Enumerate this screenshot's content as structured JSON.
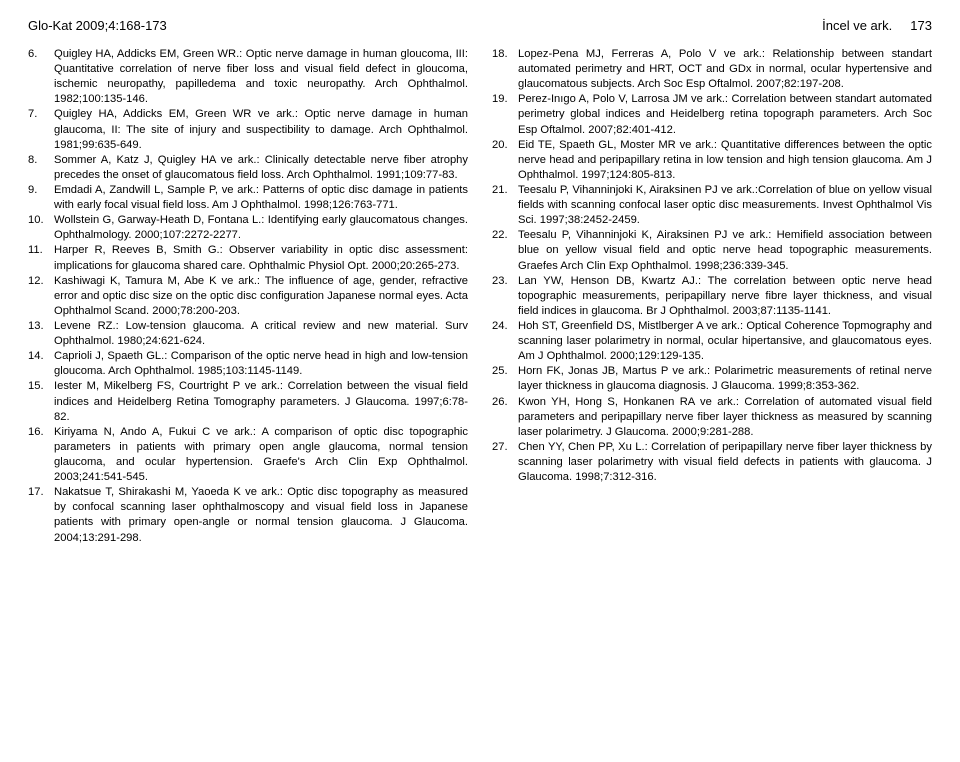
{
  "header": {
    "left": "Glo-Kat 2009;4:168-173",
    "right": "İncel ve ark.",
    "page": "173"
  },
  "leftRefs": [
    {
      "n": "6.",
      "t": "Quigley HA, Addicks EM, Green WR.: Optic nerve damage in human gloucoma, III: Quantitative correlation of nerve fiber loss and visual field defect in gloucoma, ischemic neuropathy, papilledema and toxic neuropathy. Arch Ophthalmol. 1982;100:135-146."
    },
    {
      "n": "7.",
      "t": "Quigley HA, Addicks EM, Green WR ve ark.: Optic nerve damage in human glaucoma, II: The site of injury and suspectibility to damage. Arch Ophthalmol. 1981;99:635-649."
    },
    {
      "n": "8.",
      "t": "Sommer A, Katz J, Quigley HA ve ark.: Clinically detectable nerve fiber atrophy precedes the onset of glaucomatous field loss. Arch Ophthalmol. 1991;109:77-83."
    },
    {
      "n": "9.",
      "t": "Emdadi A, Zandwill L, Sample P, ve ark.: Patterns of optic disc damage in patients with early focal visual field loss. Am J Ophthalmol. 1998;126:763-771."
    },
    {
      "n": "10.",
      "t": "Wollstein G, Garway-Heath D, Fontana L.: Identifying early glaucomatous changes. Ophthalmology. 2000;107:2272-2277."
    },
    {
      "n": "11.",
      "t": "Harper R, Reeves B, Smith G.: Observer variability in optic disc assessment: implications for glaucoma shared care. Ophthalmic Physiol Opt. 2000;20:265-273."
    },
    {
      "n": "12.",
      "t": "Kashiwagi K, Tamura M, Abe K ve ark.: The influence of age, gender, refractive error and optic disc size on the optic disc configuration Japanese normal eyes. Acta Ophthalmol Scand. 2000;78:200-203."
    },
    {
      "n": "13.",
      "t": "Levene RZ.: Low-tension glaucoma. A critical review and new material. Surv Ophthalmol. 1980;24:621-624."
    },
    {
      "n": "14.",
      "t": "Caprioli J, Spaeth GL.: Comparison of the optic nerve head in high and low-tension gloucoma. Arch Ophthalmol. 1985;103:1145-1149."
    },
    {
      "n": "15.",
      "t": "Iester M, Mikelberg FS, Courtright P ve ark.: Correlation between the visual field indices and Heidelberg Retina Tomography parameters. J Glaucoma. 1997;6:78-82."
    },
    {
      "n": "16.",
      "t": "Kiriyama N, Ando A, Fukui C ve ark.: A comparison of optic disc topographic parameters in patients with primary open angle glaucoma, normal tension glaucoma, and ocular hypertension. Graefe's Arch Clin Exp Ophthalmol. 2003;241:541-545."
    },
    {
      "n": "17.",
      "t": "Nakatsue T, Shirakashi M, Yaoeda K ve ark.: Optic disc topography as measured by confocal scanning laser ophthalmoscopy and visual field loss in Japanese patients with primary open-angle or normal tension glaucoma. J Glaucoma. 2004;13:291-298."
    }
  ],
  "rightRefs": [
    {
      "n": "18.",
      "t": "Lopez-Pena MJ, Ferreras A, Polo V ve ark.: Relationship between standart automated perimetry and HRT, OCT and GDx in normal, ocular hypertensive and glaucomatous subjects. Arch Soc Esp Oftalmol. 2007;82:197-208."
    },
    {
      "n": "19.",
      "t": "Perez-Inıgo A, Polo V, Larrosa JM ve ark.: Correlation between standart automated perimetry global indices and Heidelberg retina topograph parameters. Arch Soc Esp Oftalmol. 2007;82:401-412."
    },
    {
      "n": "20.",
      "t": "Eid TE, Spaeth GL, Moster MR ve ark.: Quantitative differences between the optic nerve head and peripapillary retina in low tension and high tension glaucoma. Am J Ophthalmol. 1997;124:805-813."
    },
    {
      "n": "21.",
      "t": "Teesalu P, Vihanninjoki K, Airaksinen PJ ve ark.:Correlation of blue on yellow visual fields with scanning confocal laser optic disc measurements. Invest Ophthalmol Vis Sci. 1997;38:2452-2459."
    },
    {
      "n": "22.",
      "t": "Teesalu P, Vihanninjoki K, Airaksinen PJ ve ark.: Hemifield association between blue on yellow visual field and optic nerve head topographic measurements. Graefes Arch Clin Exp Ophthalmol. 1998;236:339-345."
    },
    {
      "n": "23.",
      "t": "Lan YW, Henson DB, Kwartz AJ.: The correlation between optic nerve head topographic measurements, peripapillary nerve fibre layer thickness, and visual field indices in glaucoma. Br J Ophthalmol. 2003;87:1135-1141."
    },
    {
      "n": "24.",
      "t": "Hoh ST, Greenfield DS, Mistlberger A ve ark.: Optical Coherence Topmography and scanning laser polarimetry in normal, ocular hipertansive, and glaucomatous eyes. Am J Ophthalmol. 2000;129:129-135."
    },
    {
      "n": "25.",
      "t": "Horn FK, Jonas JB, Martus P ve ark.: Polarimetric measurements of retinal nerve layer thickness in glaucoma diagnosis. J Glaucoma. 1999;8:353-362."
    },
    {
      "n": "26.",
      "t": "Kwon YH, Hong S, Honkanen RA ve ark.: Correlation of automated visual field parameters and peripapillary nerve fiber layer thickness as measured by scanning laser polarimetry. J Glaucoma. 2000;9:281-288."
    },
    {
      "n": "27.",
      "t": "Chen YY, Chen PP, Xu L.: Correlation of peripapillary nerve fiber layer thickness by scanning laser polarimetry with visual field defects in patients with glaucoma. J Glaucoma. 1998;7:312-316."
    }
  ]
}
